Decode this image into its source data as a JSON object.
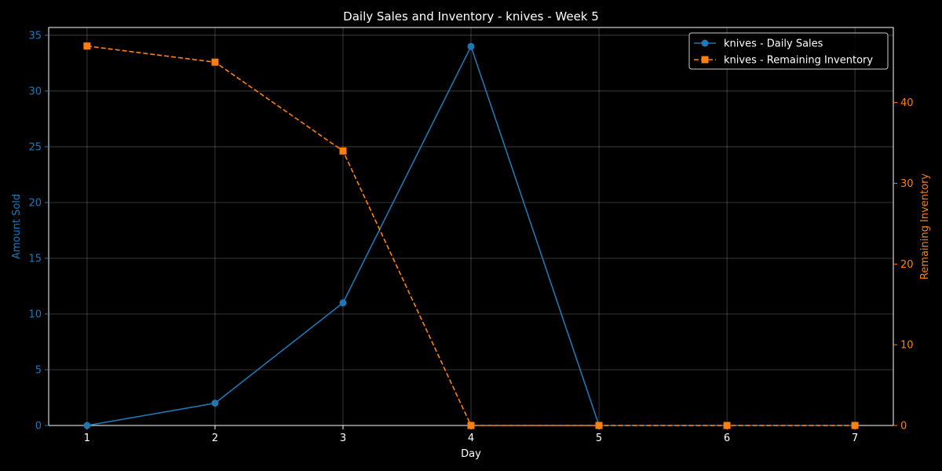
{
  "chart_data": {
    "type": "line",
    "title": "Daily Sales and Inventory - knives - Week 5",
    "xlabel": "Day",
    "ylabel_left": "Amount Sold",
    "ylabel_right": "Remaining Inventory",
    "x": [
      1,
      2,
      3,
      4,
      5,
      6,
      7
    ],
    "xlim": [
      0.7,
      7.3
    ],
    "ylim_left": [
      0,
      35.7
    ],
    "ylim_right": [
      0,
      49.3
    ],
    "yticks_left": [
      0,
      5,
      10,
      15,
      20,
      25,
      30,
      35
    ],
    "yticks_right": [
      0,
      10,
      20,
      30,
      40
    ],
    "grid": true,
    "legend_position": "top-right",
    "series": [
      {
        "name": "knives - Daily Sales",
        "axis": "left",
        "color": "#1f77b4",
        "marker": "circle",
        "line_style": "solid",
        "values": [
          0,
          2,
          11,
          34,
          0,
          0,
          0
        ]
      },
      {
        "name": "knives - Remaining Inventory",
        "axis": "right",
        "color": "#ff7f0e",
        "marker": "square",
        "line_style": "dashed",
        "values": [
          47,
          45,
          34,
          0,
          0,
          0,
          0
        ]
      }
    ]
  }
}
